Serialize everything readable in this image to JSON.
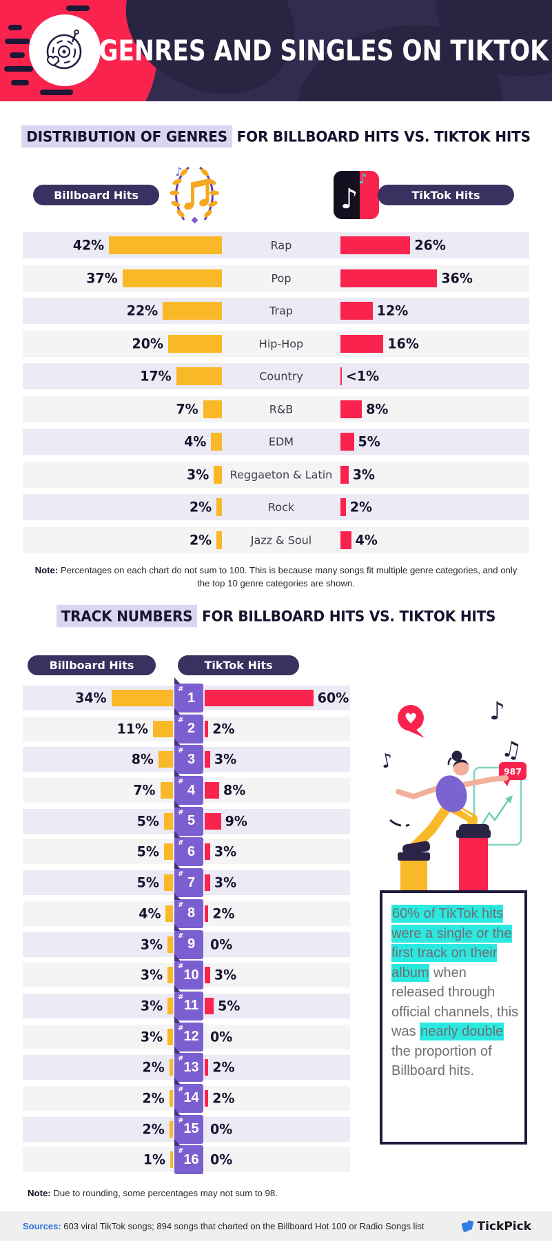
{
  "header": {
    "title": "GENRES AND SINGLES ON TIKTOK"
  },
  "genre_section": {
    "title_highlight": "DISTRIBUTION OF GENRES",
    "title_rest": " FOR BILLBOARD HITS VS. TIKTOK HITS",
    "left_legend": "Billboard Hits",
    "right_legend": "TikTok Hits",
    "note_label": "Note:",
    "note_text": " Percentages on each chart do not sum to 100. This is because many songs fit multiple genre categories, and only the top 10 genre categories are shown."
  },
  "track_section": {
    "title_highlight": "TRACK NUMBERS",
    "title_rest": " FOR BILLBOARD HITS VS. TIKTOK HITS",
    "left_legend": "Billboard Hits",
    "right_legend": "TikTok Hits",
    "note_label": "Note:",
    "note_text": " Due to rounding, some percentages may not sum to 98.",
    "badge_value": "987"
  },
  "callout": {
    "segments": [
      {
        "text": "60% of TikTok hits were a single or the first track on their album",
        "highlight": true
      },
      {
        "text": " when released through official channels, this was ",
        "highlight": false
      },
      {
        "text": "nearly double",
        "highlight": true
      },
      {
        "text": " the proportion of Billboard hits.",
        "highlight": false
      }
    ]
  },
  "footer": {
    "sources_label": "Sources:",
    "sources_text": " 603 viral TikTok songs; 894 songs that charted on the Billboard Hot 100 or Radio Songs list",
    "brand": "TickPick"
  },
  "colors": {
    "navy": "#332C50",
    "navyDark": "#2A2443",
    "red": "#F9234E",
    "yellow": "#F9B827",
    "purple": "#7B5FD0",
    "purpleDark": "#43347C",
    "pill": "#3A3160",
    "rowLav": "#ECEAF4",
    "rowGray": "#F4F4F5",
    "ink": "#17122E",
    "textGray": "#6E6E73",
    "cyan": "#2BE9E1",
    "lavHl": "#DBD5F0",
    "blue": "#2F6FE0",
    "footerBg": "#EFEFF0",
    "teal": "#7FD4C1",
    "skin": "#F2B09A"
  },
  "chart_data": [
    {
      "type": "bar",
      "title": "Distribution of Genres for Billboard Hits vs. TikTok Hits",
      "orientation": "bidirectional-horizontal",
      "categories": [
        "Rap",
        "Pop",
        "Trap",
        "Hip-Hop",
        "Country",
        "R&B",
        "EDM",
        "Reggaeton & Latin",
        "Rock",
        "Jazz & Soul"
      ],
      "series": [
        {
          "name": "Billboard Hits",
          "color": "#F9B827",
          "values": [
            42,
            37,
            22,
            20,
            17,
            7,
            4,
            3,
            2,
            2
          ],
          "labels": [
            "42%",
            "37%",
            "22%",
            "20%",
            "17%",
            "7%",
            "4%",
            "3%",
            "2%",
            "2%"
          ]
        },
        {
          "name": "TikTok Hits",
          "color": "#F9234E",
          "values": [
            26,
            36,
            12,
            16,
            0.5,
            8,
            5,
            3,
            2,
            4
          ],
          "labels": [
            "26%",
            "36%",
            "12%",
            "16%",
            "<1%",
            "8%",
            "5%",
            "3%",
            "2%",
            "4%"
          ]
        }
      ]
    },
    {
      "type": "bar",
      "title": "Track Numbers for Billboard Hits vs. TikTok Hits",
      "orientation": "bidirectional-horizontal",
      "categories": [
        "#1",
        "#2",
        "#3",
        "#4",
        "#5",
        "#6",
        "#7",
        "#8",
        "#9",
        "#10",
        "#11",
        "#12",
        "#13",
        "#14",
        "#15",
        "#16"
      ],
      "series": [
        {
          "name": "Billboard Hits",
          "color": "#F9B827",
          "values": [
            34,
            11,
            8,
            7,
            5,
            5,
            5,
            4,
            3,
            3,
            3,
            3,
            2,
            2,
            2,
            1
          ],
          "labels": [
            "34%",
            "11%",
            "8%",
            "7%",
            "5%",
            "5%",
            "5%",
            "4%",
            "3%",
            "3%",
            "3%",
            "3%",
            "2%",
            "2%",
            "2%",
            "1%"
          ]
        },
        {
          "name": "TikTok Hits",
          "color": "#F9234E",
          "values": [
            60,
            2,
            3,
            8,
            9,
            3,
            3,
            2,
            0,
            3,
            5,
            0,
            2,
            2,
            0,
            0
          ],
          "labels": [
            "60%",
            "2%",
            "3%",
            "8%",
            "9%",
            "3%",
            "3%",
            "2%",
            "0%",
            "3%",
            "5%",
            "0%",
            "2%",
            "2%",
            "0%",
            "0%"
          ]
        }
      ]
    }
  ]
}
